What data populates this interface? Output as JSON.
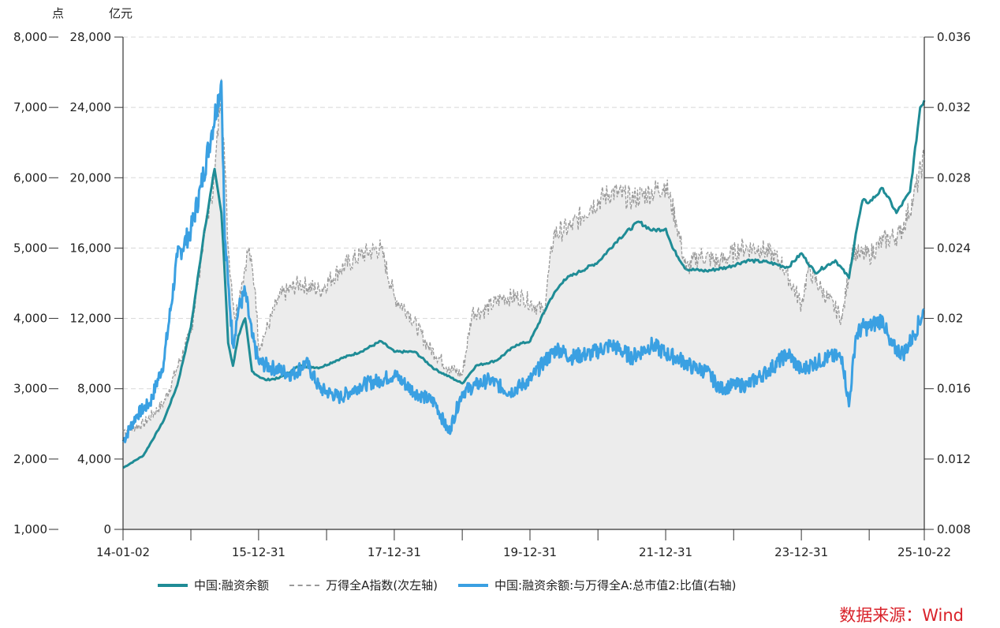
{
  "units": {
    "left1": "点",
    "left2": "亿元"
  },
  "source": "数据来源：Wind",
  "legend": [
    {
      "label": "中国:融资余额",
      "style": "solid-teal"
    },
    {
      "label": "万得全A指数(次左轴)",
      "style": "dash-gray"
    },
    {
      "label": "中国:融资余额:与万得全A:总市值2:比值(右轴)",
      "style": "solid-blue"
    }
  ],
  "colors": {
    "financing": "#1f8c96",
    "index": "#9a9a9a",
    "ratio": "#3aa0e2",
    "area": "#ececec"
  },
  "chart_data": {
    "type": "line",
    "title": "",
    "x_ticks": [
      "14-01-02",
      "15-12-31",
      "17-12-31",
      "19-12-31",
      "21-12-31",
      "23-12-31",
      "25-10-22"
    ],
    "axes": {
      "left_outer": {
        "label": "点",
        "ticks": [
          "1,000",
          "2,000",
          "3,000",
          "4,000",
          "5,000",
          "6,000",
          "7,000",
          "8,000"
        ],
        "range": [
          1000,
          8000
        ]
      },
      "left_inner": {
        "label": "亿元",
        "ticks": [
          "0",
          "4,000",
          "8,000",
          "12,000",
          "16,000",
          "20,000",
          "24,000",
          "28,000"
        ],
        "range": [
          0,
          28000
        ]
      },
      "right": {
        "label": "",
        "ticks": [
          "0.008",
          "0.012",
          "0.016",
          "0.02",
          "0.024",
          "0.028",
          "0.032",
          "0.036"
        ],
        "range": [
          0.008,
          0.036
        ]
      }
    },
    "grid": true,
    "legend_position": "bottom",
    "series": [
      {
        "name": "中国:融资余额",
        "axis": "left_inner",
        "t": [
          2014.0,
          2014.3,
          2014.6,
          2014.8,
          2015.0,
          2015.2,
          2015.35,
          2015.45,
          2015.5,
          2015.55,
          2015.62,
          2015.7,
          2015.8,
          2015.9,
          2016.0,
          2016.1,
          2016.3,
          2016.6,
          2016.9,
          2017.2,
          2017.5,
          2017.8,
          2018.0,
          2018.3,
          2018.6,
          2018.9,
          2019.0,
          2019.2,
          2019.5,
          2019.8,
          2020.0,
          2020.3,
          2020.5,
          2020.7,
          2021.0,
          2021.3,
          2021.6,
          2021.8,
          2022.0,
          2022.1,
          2022.3,
          2022.6,
          2022.9,
          2023.2,
          2023.5,
          2023.8,
          2024.0,
          2024.2,
          2024.5,
          2024.7,
          2024.8,
          2024.9,
          2025.0,
          2025.2,
          2025.4,
          2025.6,
          2025.75,
          2025.81
        ],
        "values": [
          3500,
          4200,
          6200,
          8200,
          11500,
          17000,
          20500,
          18000,
          14500,
          10600,
          9300,
          11000,
          12000,
          9000,
          8700,
          8500,
          8600,
          9300,
          9200,
          9700,
          10100,
          10700,
          10100,
          10100,
          9100,
          8500,
          8300,
          9300,
          9600,
          10500,
          10700,
          13100,
          14200,
          14600,
          15200,
          16500,
          17500,
          17000,
          17100,
          16000,
          14800,
          14700,
          14900,
          15300,
          15200,
          14900,
          15700,
          14600,
          15300,
          14300,
          16800,
          18700,
          18600,
          19400,
          18000,
          19200,
          24000,
          24400
        ]
      },
      {
        "name": "万得全A指数(次左轴)",
        "axis": "left_outer",
        "t": [
          2014.0,
          2014.3,
          2014.6,
          2014.8,
          2015.0,
          2015.2,
          2015.35,
          2015.45,
          2015.5,
          2015.55,
          2015.65,
          2015.75,
          2015.85,
          2015.95,
          2016.0,
          2016.1,
          2016.3,
          2016.6,
          2016.9,
          2017.2,
          2017.5,
          2017.8,
          2018.0,
          2018.2,
          2018.5,
          2018.8,
          2019.0,
          2019.15,
          2019.3,
          2019.6,
          2019.9,
          2020.2,
          2020.35,
          2020.6,
          2020.9,
          2021.2,
          2021.5,
          2021.8,
          2022.0,
          2022.15,
          2022.3,
          2022.5,
          2022.8,
          2023.1,
          2023.4,
          2023.7,
          2024.0,
          2024.1,
          2024.3,
          2024.6,
          2024.75,
          2024.85,
          2025.0,
          2025.2,
          2025.45,
          2025.65,
          2025.81
        ],
        "values": [
          2400,
          2500,
          2800,
          3300,
          3800,
          5200,
          6000,
          7400,
          6200,
          5000,
          4000,
          4500,
          5000,
          4400,
          3600,
          3800,
          4300,
          4500,
          4400,
          4700,
          4900,
          5000,
          4300,
          4100,
          3600,
          3300,
          3200,
          4100,
          4100,
          4300,
          4300,
          4100,
          5200,
          5300,
          5600,
          5800,
          5700,
          5800,
          5900,
          5400,
          4700,
          4900,
          4800,
          5000,
          5000,
          4800,
          4200,
          4700,
          4400,
          4000,
          5000,
          4900,
          4900,
          5100,
          5200,
          5700,
          6300
        ]
      },
      {
        "name": "中国:融资余额:与万得全A:总市值2:比值(右轴)",
        "axis": "right",
        "t": [
          2014.0,
          2014.2,
          2014.4,
          2014.6,
          2014.8,
          2015.0,
          2015.15,
          2015.3,
          2015.45,
          2015.5,
          2015.55,
          2015.62,
          2015.7,
          2015.8,
          2015.9,
          2016.0,
          2016.2,
          2016.5,
          2016.7,
          2016.9,
          2017.2,
          2017.5,
          2017.8,
          2018.0,
          2018.3,
          2018.6,
          2018.8,
          2019.0,
          2019.2,
          2019.4,
          2019.7,
          2020.0,
          2020.2,
          2020.4,
          2020.6,
          2020.9,
          2021.2,
          2021.5,
          2021.8,
          2022.0,
          2022.2,
          2022.4,
          2022.6,
          2022.8,
          2023.0,
          2023.2,
          2023.5,
          2023.8,
          2024.0,
          2024.1,
          2024.4,
          2024.6,
          2024.7,
          2024.8,
          2024.9,
          2025.0,
          2025.2,
          2025.3,
          2025.5,
          2025.65,
          2025.81
        ],
        "values": [
          0.013,
          0.0145,
          0.0152,
          0.0175,
          0.0235,
          0.025,
          0.0275,
          0.0305,
          0.0335,
          0.0245,
          0.022,
          0.0185,
          0.0205,
          0.0215,
          0.019,
          0.0175,
          0.0172,
          0.0168,
          0.0175,
          0.016,
          0.0155,
          0.0162,
          0.0165,
          0.0168,
          0.0158,
          0.0152,
          0.0135,
          0.0158,
          0.0162,
          0.0165,
          0.0158,
          0.0165,
          0.0175,
          0.0183,
          0.0178,
          0.018,
          0.0185,
          0.0178,
          0.0185,
          0.018,
          0.0177,
          0.0172,
          0.017,
          0.016,
          0.0162,
          0.0162,
          0.017,
          0.018,
          0.017,
          0.0173,
          0.0178,
          0.0178,
          0.015,
          0.019,
          0.0195,
          0.0195,
          0.02,
          0.0185,
          0.018,
          0.019,
          0.0205
        ]
      }
    ]
  }
}
